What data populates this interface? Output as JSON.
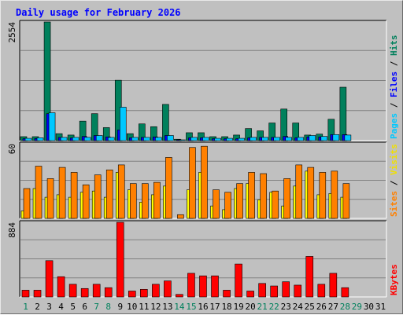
{
  "chart_data": {
    "type": "bar",
    "title": "Daily usage for February 2026",
    "days": [
      "1",
      "2",
      "3",
      "4",
      "5",
      "6",
      "7",
      "8",
      "9",
      "10",
      "11",
      "12",
      "13",
      "14",
      "15",
      "16",
      "17",
      "18",
      "19",
      "20",
      "21",
      "22",
      "23",
      "24",
      "25",
      "26",
      "27",
      "28",
      "29",
      "30",
      "31"
    ],
    "weekend_days": [
      "1",
      "7",
      "8",
      "14",
      "15",
      "21",
      "22",
      "28",
      "29"
    ],
    "panels": [
      {
        "id": "pages-files-hits",
        "ymax_label": "2554",
        "ymax": 2554,
        "labels": [
          {
            "text": "Hits",
            "color": "#00805c"
          },
          {
            "text": " / ",
            "color": "#000000"
          },
          {
            "text": "Files",
            "color": "#0000ff"
          },
          {
            "text": " / ",
            "color": "#000000"
          },
          {
            "text": "Pages",
            "color": "#00c8ff"
          }
        ],
        "series": [
          {
            "name": "Hits",
            "color": "#00805c",
            "values": [
              85,
              85,
              2554,
              150,
              120,
              420,
              580,
              280,
              1300,
              150,
              360,
              300,
              780,
              30,
              170,
              170,
              85,
              85,
              120,
              260,
              210,
              380,
              680,
              380,
              120,
              140,
              460,
              1150,
              0,
              0,
              0
            ]
          },
          {
            "name": "Files",
            "color": "#0000ff",
            "values": [
              40,
              45,
              580,
              70,
              55,
              90,
              110,
              80,
              230,
              60,
              70,
              80,
              110,
              15,
              60,
              60,
              40,
              40,
              40,
              60,
              70,
              70,
              90,
              60,
              80,
              80,
              130,
              130,
              0,
              0,
              0
            ]
          },
          {
            "name": "Pages",
            "color": "#00c8ff",
            "values": [
              50,
              60,
              600,
              70,
              70,
              70,
              110,
              70,
              720,
              70,
              70,
              70,
              110,
              10,
              70,
              70,
              50,
              50,
              50,
              70,
              70,
              70,
              70,
              70,
              110,
              90,
              130,
              120,
              0,
              0,
              0
            ]
          }
        ]
      },
      {
        "id": "visits-sites",
        "ymax_label": "60",
        "ymax": 60,
        "labels": [
          {
            "text": "Visits",
            "color": "#f0e000"
          },
          {
            "text": " / ",
            "color": "#000000"
          },
          {
            "text": "Sites",
            "color": "#ff8000"
          }
        ],
        "series": [
          {
            "name": "Visits",
            "color": "#ffff00",
            "values": [
              6,
              24,
              17,
              19,
              17,
              21,
              22,
              17,
              37,
              23,
              13,
              19,
              26,
              0,
              23,
              37,
              10,
              7,
              24,
              28,
              15,
              21,
              10,
              26,
              38,
              19,
              20,
              17,
              0,
              0,
              0
            ]
          },
          {
            "name": "Sites",
            "color": "#ff8000",
            "values": [
              24,
              42,
              32,
              41,
              37,
              27,
              35,
              39,
              43,
              28,
              28,
              29,
              49,
              3,
              57,
              58,
              23,
              21,
              28,
              37,
              36,
              22,
              32,
              43,
              41,
              37,
              38,
              28,
              0,
              0,
              0
            ]
          }
        ]
      },
      {
        "id": "kbytes",
        "ymax_label": "884",
        "ymax": 884,
        "labels": [
          {
            "text": "KBytes",
            "color": "#ff0000"
          }
        ],
        "series": [
          {
            "name": "KBytes",
            "color": "#ff0000",
            "values": [
              80,
              80,
              430,
              240,
              150,
              100,
              150,
              110,
              884,
              70,
              90,
              150,
              190,
              30,
              280,
              250,
              250,
              80,
              390,
              70,
              160,
              130,
              180,
              140,
              480,
              150,
              280,
              110,
              0,
              0,
              0
            ]
          }
        ]
      }
    ]
  }
}
